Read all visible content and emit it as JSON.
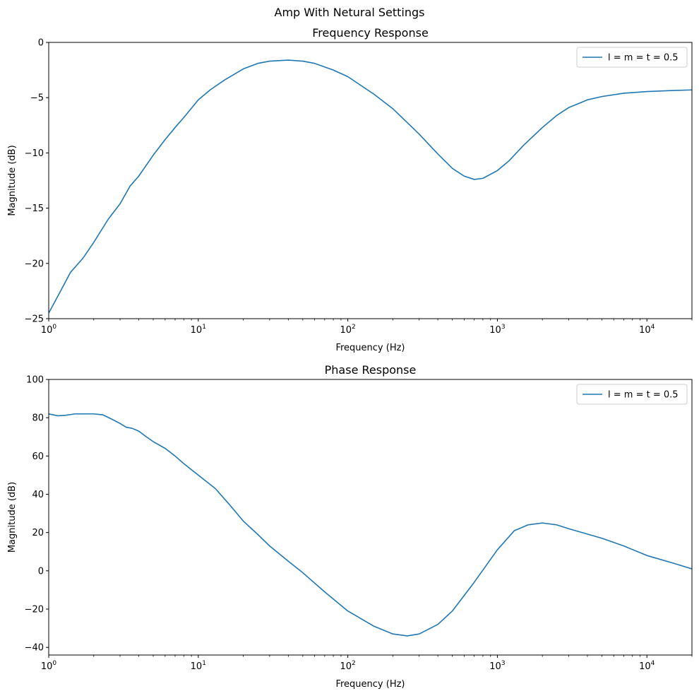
{
  "figure": {
    "suptitle": "Amp With Netural Settings"
  },
  "chart_data": [
    {
      "type": "line",
      "title": "Frequency Response",
      "xlabel": "Frequency (Hz)",
      "ylabel": "Magnitude (dB)",
      "xscale": "log",
      "xlim": [
        1,
        20000
      ],
      "ylim": [
        -25,
        0
      ],
      "xticks": [
        {
          "value": 1,
          "base": "10",
          "exp": "0"
        },
        {
          "value": 10,
          "base": "10",
          "exp": "1"
        },
        {
          "value": 100,
          "base": "10",
          "exp": "2"
        },
        {
          "value": 1000,
          "base": "10",
          "exp": "3"
        },
        {
          "value": 10000,
          "base": "10",
          "exp": "4"
        }
      ],
      "yticks": [
        0,
        -5,
        -10,
        -15,
        -20,
        -25
      ],
      "ytick_labels": [
        "0",
        "−5",
        "−10",
        "−15",
        "−20",
        "−25"
      ],
      "grid": false,
      "legend": {
        "position": "top-right",
        "entries": [
          "l = m = t = 0.5"
        ]
      },
      "series": [
        {
          "name": "l = m = t = 0.5",
          "color": "#1f77b4",
          "x": [
            1,
            1.2,
            1.4,
            1.7,
            2,
            2.5,
            3,
            3.5,
            4,
            5,
            6,
            7,
            8,
            10,
            12,
            15,
            20,
            25,
            30,
            40,
            50,
            60,
            80,
            100,
            150,
            200,
            300,
            400,
            500,
            600,
            700,
            800,
            1000,
            1200,
            1500,
            2000,
            2500,
            3000,
            4000,
            5000,
            7000,
            10000,
            15000,
            20000
          ],
          "y": [
            -24.5,
            -22.5,
            -20.8,
            -19.5,
            -18.1,
            -16.0,
            -14.6,
            -13.0,
            -12.1,
            -10.2,
            -8.8,
            -7.7,
            -6.8,
            -5.2,
            -4.3,
            -3.4,
            -2.4,
            -1.9,
            -1.7,
            -1.6,
            -1.7,
            -1.9,
            -2.5,
            -3.1,
            -4.7,
            -6.0,
            -8.3,
            -10.1,
            -11.4,
            -12.1,
            -12.4,
            -12.3,
            -11.6,
            -10.7,
            -9.3,
            -7.7,
            -6.6,
            -5.9,
            -5.2,
            -4.9,
            -4.6,
            -4.45,
            -4.35,
            -4.3
          ]
        }
      ]
    },
    {
      "type": "line",
      "title": "Phase Response",
      "xlabel": "Frequency (Hz)",
      "ylabel": "Magnitude (dB)",
      "xscale": "log",
      "xlim": [
        1,
        20000
      ],
      "ylim": [
        -44,
        100
      ],
      "xticks": [
        {
          "value": 1,
          "base": "10",
          "exp": "0"
        },
        {
          "value": 10,
          "base": "10",
          "exp": "1"
        },
        {
          "value": 100,
          "base": "10",
          "exp": "2"
        },
        {
          "value": 1000,
          "base": "10",
          "exp": "3"
        },
        {
          "value": 10000,
          "base": "10",
          "exp": "4"
        }
      ],
      "yticks": [
        100,
        80,
        60,
        40,
        20,
        0,
        -20,
        -40
      ],
      "ytick_labels": [
        "100",
        "80",
        "60",
        "40",
        "20",
        "0",
        "−20",
        "−40"
      ],
      "grid": false,
      "legend": {
        "position": "top-right",
        "entries": [
          "l = m = t = 0.5"
        ]
      },
      "series": [
        {
          "name": "l = m = t = 0.5",
          "color": "#1f77b4",
          "x": [
            1,
            1.15,
            1.3,
            1.5,
            1.7,
            2,
            2.3,
            2.6,
            3,
            3.3,
            3.6,
            4,
            4.5,
            5,
            6,
            7,
            8,
            10,
            13,
            16,
            20,
            25,
            30,
            40,
            50,
            70,
            100,
            150,
            200,
            250,
            300,
            400,
            500,
            700,
            1000,
            1300,
            1600,
            2000,
            2500,
            3000,
            5000,
            7000,
            10000,
            15000,
            20000
          ],
          "y": [
            82,
            81,
            81.3,
            82,
            82,
            82,
            81.5,
            79.5,
            77,
            75,
            74.5,
            73,
            70,
            67.5,
            64,
            60,
            56,
            50,
            43,
            35,
            26,
            19,
            13,
            5,
            -1,
            -11,
            -21,
            -29,
            -33,
            -34,
            -33,
            -28,
            -21,
            -6,
            11,
            21,
            24,
            25,
            24,
            22,
            17,
            13,
            8,
            4,
            1
          ]
        }
      ]
    }
  ]
}
